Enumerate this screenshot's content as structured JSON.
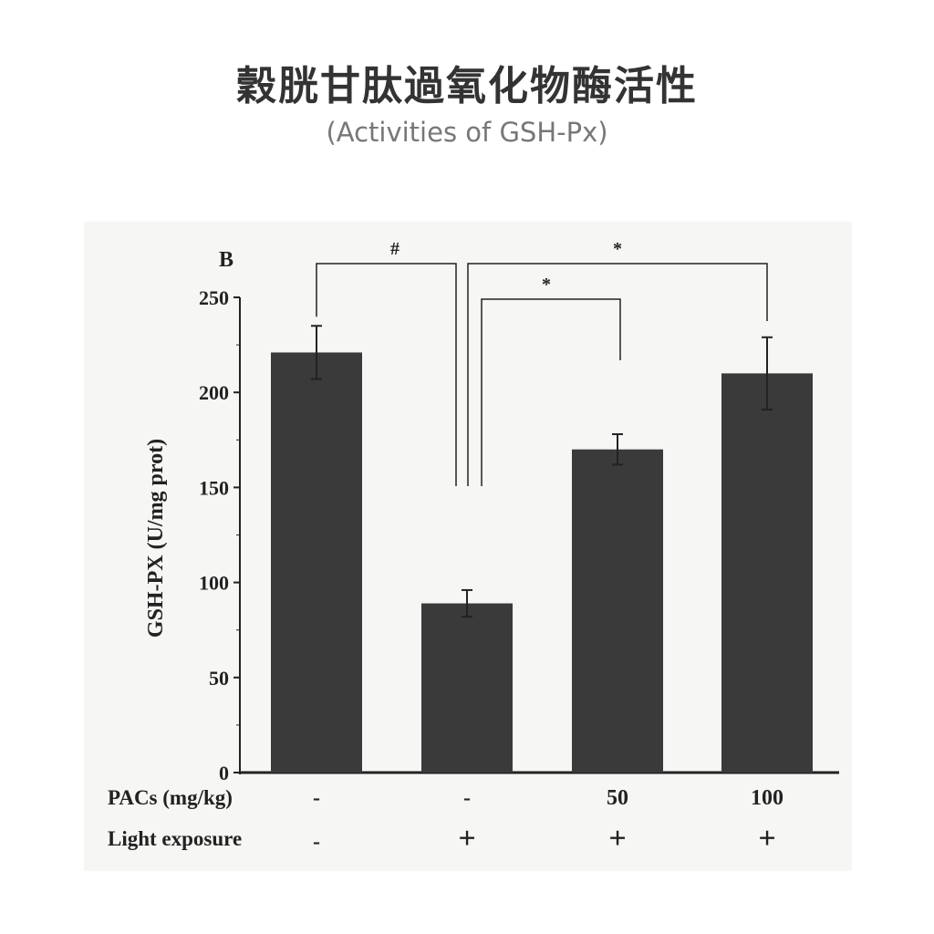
{
  "header": {
    "title": "穀胱甘肽過氧化物酶活性",
    "subtitle": "(Activities of GSH-Px)"
  },
  "chart_data": {
    "type": "bar",
    "panel_label": "B",
    "ylabel": "GSH-PX (U/mg prot)",
    "ylim": [
      0,
      250
    ],
    "yticks": [
      0,
      50,
      100,
      150,
      200,
      250
    ],
    "grid": false,
    "categories": [
      "1",
      "2",
      "3",
      "4"
    ],
    "values": [
      221,
      89,
      170,
      210
    ],
    "error": [
      14,
      7,
      8,
      19
    ],
    "bar_color": "#3a3a3a",
    "condition_rows": [
      {
        "label": "PACs (mg/kg)",
        "values": [
          "-",
          "-",
          "50",
          "100"
        ]
      },
      {
        "label": "Light exposure",
        "values": [
          "-",
          "+",
          "+",
          "+"
        ]
      }
    ],
    "significance": [
      {
        "groups": [
          1,
          2
        ],
        "label": "#"
      },
      {
        "groups": [
          2,
          3
        ],
        "label": "*"
      },
      {
        "groups": [
          2,
          4
        ],
        "label": "*"
      }
    ]
  }
}
